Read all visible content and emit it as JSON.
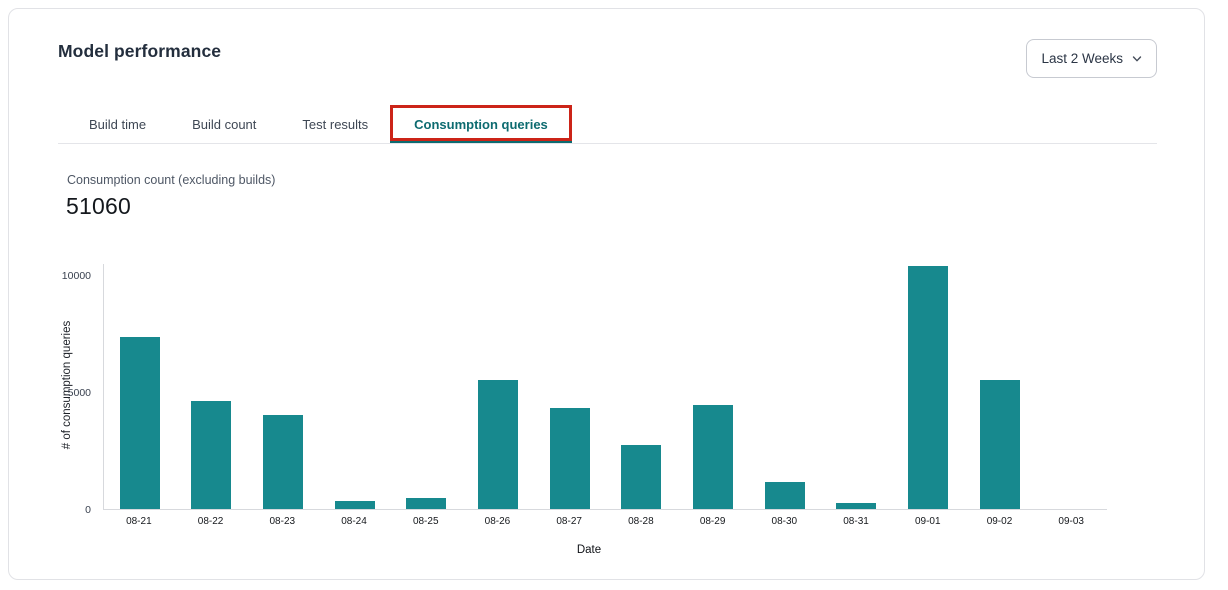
{
  "window": {
    "title": "Model performance"
  },
  "controls": {
    "time_range": {
      "value": "Last 2 Weeks",
      "icon": "chevron-down-icon"
    }
  },
  "tabs": {
    "items": [
      {
        "label": "Build time",
        "active": false
      },
      {
        "label": "Build count",
        "active": false
      },
      {
        "label": "Test results",
        "active": false
      },
      {
        "label": "Consumption queries",
        "active": true,
        "annotated": true
      }
    ]
  },
  "metric": {
    "label": "Consumption count (excluding builds)",
    "value": "51060"
  },
  "chart_data": {
    "type": "bar",
    "title": "",
    "categories": [
      "08-21",
      "08-22",
      "08-23",
      "08-24",
      "08-25",
      "08-26",
      "08-27",
      "08-28",
      "08-29",
      "08-30",
      "08-31",
      "09-01",
      "09-02",
      "09-03"
    ],
    "values": [
      7350,
      4600,
      4000,
      330,
      450,
      5500,
      4330,
      2740,
      4460,
      1150,
      250,
      10400,
      5500,
      0
    ],
    "xlabel": "Date",
    "ylabel": "# of consumption queries",
    "ylim": [
      0,
      10500
    ],
    "yticks": [
      0,
      5000,
      10000
    ],
    "grid": false,
    "legend": false,
    "bar_color": "#17898e"
  },
  "annotation": {
    "shape": "rectangle",
    "color": "#cc2418",
    "target": "Consumption queries tab"
  },
  "colors": {
    "bar_teal": "#17898e",
    "active_tab_text": "#0d6b70",
    "annotation_red": "#cc2418",
    "card_border": "#e1e2e6",
    "axis_line": "#d7d9dd"
  }
}
